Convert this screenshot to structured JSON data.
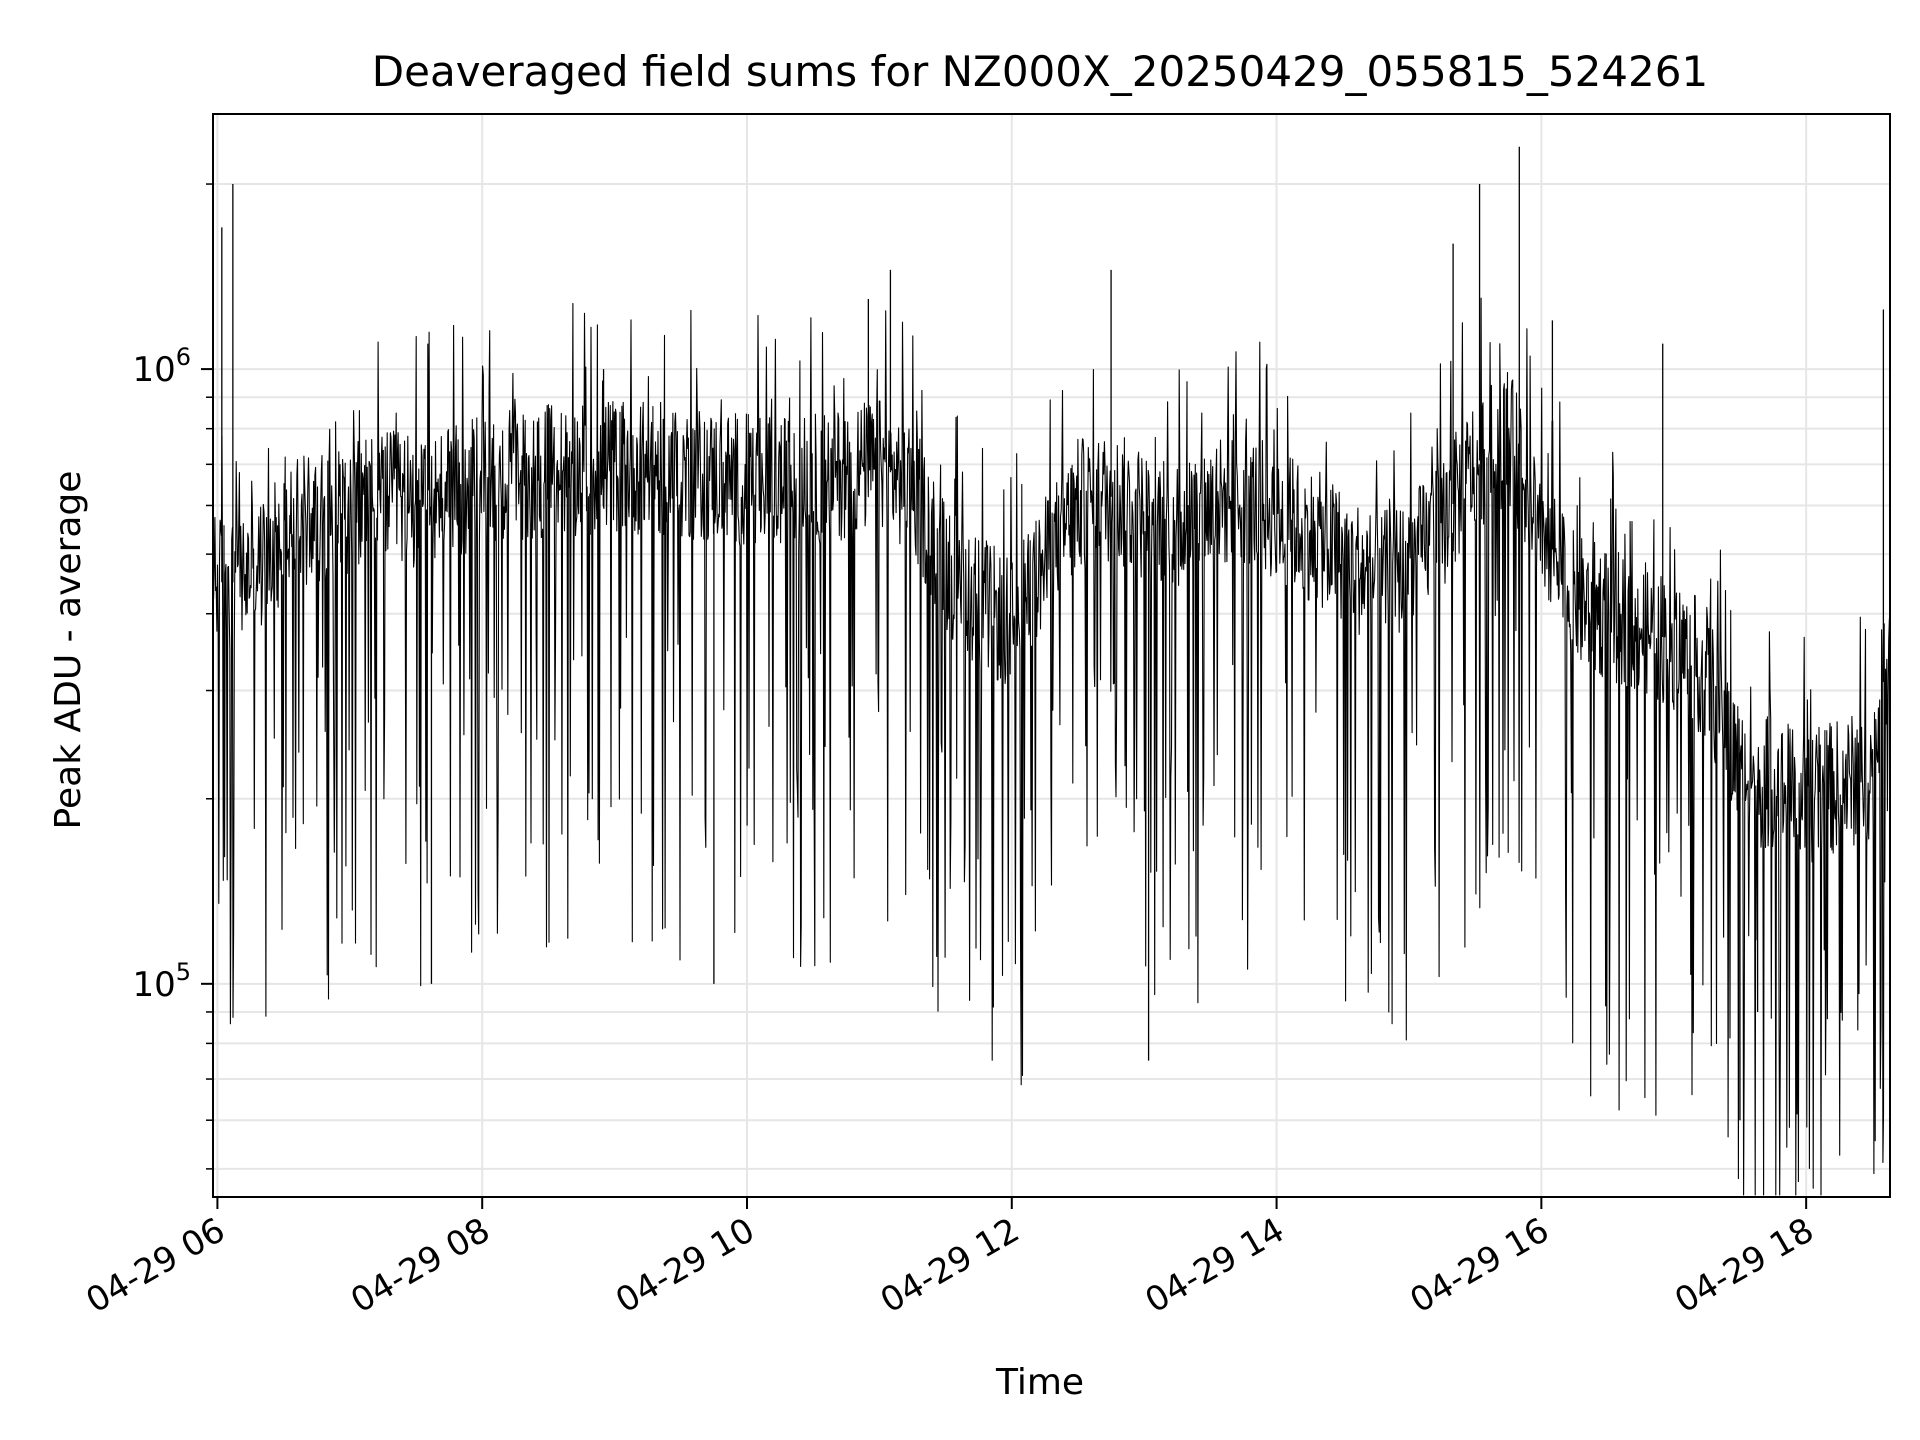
{
  "chart_data": {
    "type": "line",
    "title": "Deaveraged field sums for NZ000X_20250429_055815_524261",
    "xlabel": "Time",
    "ylabel": "Peak ADU - average",
    "yscale": "log",
    "ylim": [
      45000,
      2600000
    ],
    "xlim": [
      "2025-04-29 05:58",
      "2025-04-29 18:38"
    ],
    "grid": true,
    "legend": "none",
    "colors": {
      "line": "#000000",
      "grid": "#e6e6e6",
      "axes": "#000000",
      "background": "#ffffff"
    },
    "x_ticks": [
      {
        "value": "2025-04-29 06:00",
        "label": "04-29 06"
      },
      {
        "value": "2025-04-29 08:00",
        "label": "04-29 08"
      },
      {
        "value": "2025-04-29 10:00",
        "label": "04-29 10"
      },
      {
        "value": "2025-04-29 12:00",
        "label": "04-29 12"
      },
      {
        "value": "2025-04-29 14:00",
        "label": "04-29 14"
      },
      {
        "value": "2025-04-29 16:00",
        "label": "04-29 16"
      },
      {
        "value": "2025-04-29 18:00",
        "label": "04-29 18"
      }
    ],
    "y_ticks": [
      {
        "value": 100000,
        "base": "10",
        "exp": "5"
      },
      {
        "value": 1000000,
        "base": "10",
        "exp": "6"
      }
    ],
    "series": [
      {
        "x": [
          "2025-04-29 05:58",
          "2025-04-29 06:08",
          "2025-04-29 06:20",
          "2025-04-29 06:30",
          "2025-04-29 06:45",
          "2025-04-29 07:00",
          "2025-04-29 07:15",
          "2025-04-29 07:30",
          "2025-04-29 07:45",
          "2025-04-29 08:00",
          "2025-04-29 08:15",
          "2025-04-29 08:30",
          "2025-04-29 08:45",
          "2025-04-29 09:00",
          "2025-04-29 09:15",
          "2025-04-29 09:30",
          "2025-04-29 09:45",
          "2025-04-29 10:00",
          "2025-04-29 10:15",
          "2025-04-29 10:30",
          "2025-04-29 10:45",
          "2025-04-29 11:00",
          "2025-04-29 11:15",
          "2025-04-29 11:30",
          "2025-04-29 11:45",
          "2025-04-29 12:00",
          "2025-04-29 12:15",
          "2025-04-29 12:30",
          "2025-04-29 12:45",
          "2025-04-29 13:00",
          "2025-04-29 13:15",
          "2025-04-29 13:30",
          "2025-04-29 13:45",
          "2025-04-29 14:00",
          "2025-04-29 14:15",
          "2025-04-29 14:30",
          "2025-04-29 14:45",
          "2025-04-29 15:00",
          "2025-04-29 15:15",
          "2025-04-29 15:30",
          "2025-04-29 15:45",
          "2025-04-29 16:00",
          "2025-04-29 16:15",
          "2025-04-29 16:30",
          "2025-04-29 16:45",
          "2025-04-29 17:00",
          "2025-04-29 17:15",
          "2025-04-29 17:30",
          "2025-04-29 17:45",
          "2025-04-29 18:00",
          "2025-04-29 18:15",
          "2025-04-29 18:30",
          "2025-04-29 18:38"
        ],
        "y": [
          450000,
          450000,
          480000,
          540000,
          580000,
          600000,
          620000,
          610000,
          630000,
          650000,
          670000,
          680000,
          690000,
          700000,
          690000,
          680000,
          670000,
          660000,
          650000,
          660000,
          680000,
          700000,
          640000,
          480000,
          420000,
          380000,
          480000,
          600000,
          620000,
          580000,
          560000,
          600000,
          620000,
          580000,
          540000,
          500000,
          450000,
          480000,
          560000,
          700000,
          780000,
          560000,
          420000,
          400000,
          380000,
          360000,
          320000,
          220000,
          210000,
          200000,
          210000,
          220000,
          380000
        ]
      }
    ],
    "spikes": {
      "x": [
        "2025-04-29 06:02",
        "2025-04-29 06:07",
        "2025-04-29 07:37",
        "2025-04-29 08:55",
        "2025-04-29 09:45",
        "2025-04-29 10:55",
        "2025-04-29 11:05",
        "2025-04-29 12:45",
        "2025-04-29 13:02",
        "2025-04-29 15:20",
        "2025-04-29 15:32",
        "2025-04-29 15:50",
        "2025-04-29 16:05",
        "2025-04-29 16:55",
        "2025-04-29 17:30",
        "2025-04-29 17:38",
        "2025-04-29 18:35"
      ],
      "y": [
        1700000,
        2000000,
        100000,
        1000000,
        100000,
        1300000,
        1450000,
        1450000,
        75000,
        1600000,
        2000000,
        2300000,
        1200000,
        1100000,
        60000,
        90000,
        1250000
      ]
    }
  }
}
